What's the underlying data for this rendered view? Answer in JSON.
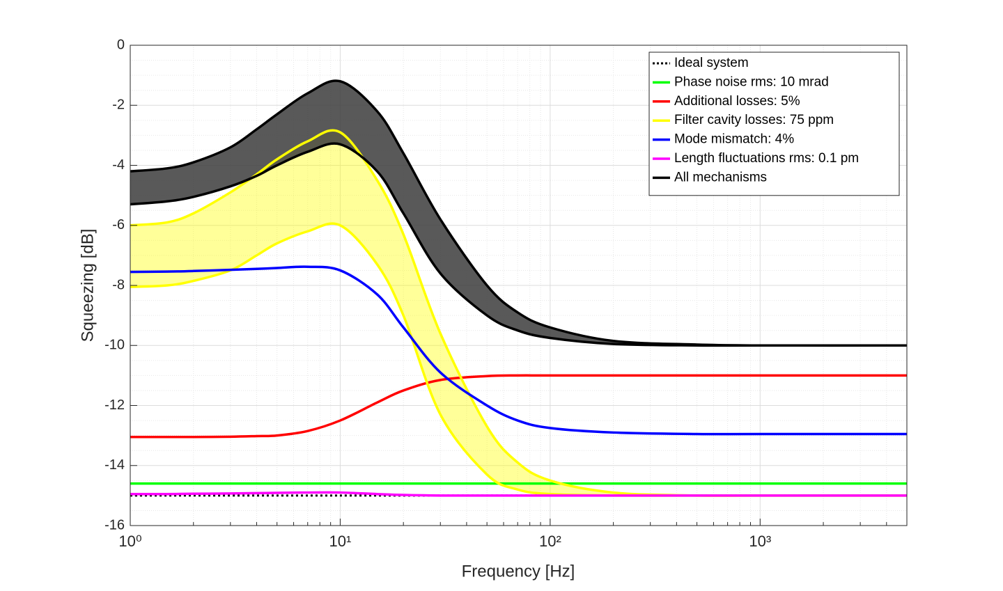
{
  "chart_data": {
    "type": "line",
    "x_scale": "log",
    "grid": true,
    "minor_grid": true,
    "legend": "top-right",
    "xlabel": "Frequency [Hz]",
    "ylabel": "Squeezing [dB]",
    "xlim": [
      1,
      5000
    ],
    "ylim": [
      -16,
      0
    ],
    "xticks": [
      {
        "value": 1,
        "label": "10⁰"
      },
      {
        "value": 10,
        "label": "10¹"
      },
      {
        "value": 100,
        "label": "10²"
      },
      {
        "value": 1000,
        "label": "10³"
      }
    ],
    "yticks": [
      -16,
      -14,
      -12,
      -10,
      -8,
      -6,
      -4,
      -2,
      0
    ],
    "x": [
      1,
      1.5,
      2,
      3,
      4,
      5,
      7,
      10,
      15,
      20,
      30,
      50,
      70,
      100,
      200,
      500,
      1000,
      5000
    ],
    "series": [
      {
        "name": "Ideal system",
        "color": "#000000",
        "dash": "dotted",
        "values": [
          -15,
          -15,
          -15,
          -15,
          -15,
          -15,
          -15,
          -15,
          -15,
          -15,
          -15,
          -15,
          -15,
          -15,
          -15,
          -15,
          -15,
          -15
        ]
      },
      {
        "name": "Phase noise rms: 10 mrad",
        "color": "#00ff00",
        "values": [
          -14.6,
          -14.6,
          -14.6,
          -14.6,
          -14.6,
          -14.6,
          -14.6,
          -14.6,
          -14.6,
          -14.6,
          -14.6,
          -14.6,
          -14.6,
          -14.6,
          -14.6,
          -14.6,
          -14.6,
          -14.6
        ]
      },
      {
        "name": "Additional losses: 5%",
        "color": "#ff0000",
        "values": [
          -13.05,
          -13.05,
          -13.05,
          -13.04,
          -13.02,
          -13.0,
          -12.85,
          -12.5,
          -11.9,
          -11.5,
          -11.15,
          -11.02,
          -11.0,
          -11.0,
          -11.0,
          -11.0,
          -11.0,
          -11.0
        ]
      },
      {
        "name": "Filter cavity losses: 75 ppm",
        "color": "#ffff00",
        "band_color": "rgba(255,255,0,0.4)",
        "values": [
          -6.0,
          -5.9,
          -5.6,
          -4.9,
          -4.3,
          -3.8,
          -3.2,
          -2.9,
          -4.5,
          -6.3,
          -9.6,
          -12.7,
          -13.9,
          -14.5,
          -14.9,
          -15.0,
          -15.0,
          -15.0
        ],
        "lower": [
          -8.05,
          -8.0,
          -7.85,
          -7.5,
          -7.0,
          -6.6,
          -6.2,
          -6.0,
          -7.3,
          -9.0,
          -12.3,
          -14.3,
          -14.8,
          -14.95,
          -15.0,
          -15.0,
          -15.0,
          -15.0
        ]
      },
      {
        "name": "Mode mismatch: 4%",
        "color": "#0000ff",
        "values": [
          -7.55,
          -7.54,
          -7.52,
          -7.48,
          -7.45,
          -7.42,
          -7.38,
          -7.5,
          -8.3,
          -9.4,
          -10.9,
          -12.0,
          -12.5,
          -12.75,
          -12.9,
          -12.95,
          -12.95,
          -12.95
        ]
      },
      {
        "name": "Length fluctuations rms: 0.1 pm",
        "color": "#ff00ff",
        "values": [
          -14.95,
          -14.95,
          -14.94,
          -14.93,
          -14.92,
          -14.91,
          -14.9,
          -14.9,
          -14.95,
          -14.98,
          -15.0,
          -15.0,
          -15.0,
          -15.0,
          -15.0,
          -15.0,
          -15.0,
          -15.0
        ]
      },
      {
        "name": "All mechanisms",
        "color": "#000000",
        "band_color": "rgba(60,60,60,0.85)",
        "values": [
          -4.2,
          -4.1,
          -3.9,
          -3.4,
          -2.8,
          -2.3,
          -1.6,
          -1.2,
          -2.2,
          -3.6,
          -5.8,
          -8.0,
          -8.9,
          -9.4,
          -9.85,
          -9.97,
          -10.0,
          -10.0
        ],
        "lower": [
          -5.3,
          -5.2,
          -5.05,
          -4.7,
          -4.35,
          -4.0,
          -3.55,
          -3.3,
          -4.2,
          -5.6,
          -7.6,
          -9.0,
          -9.5,
          -9.75,
          -9.95,
          -10.0,
          -10.0,
          -10.0
        ]
      }
    ]
  }
}
